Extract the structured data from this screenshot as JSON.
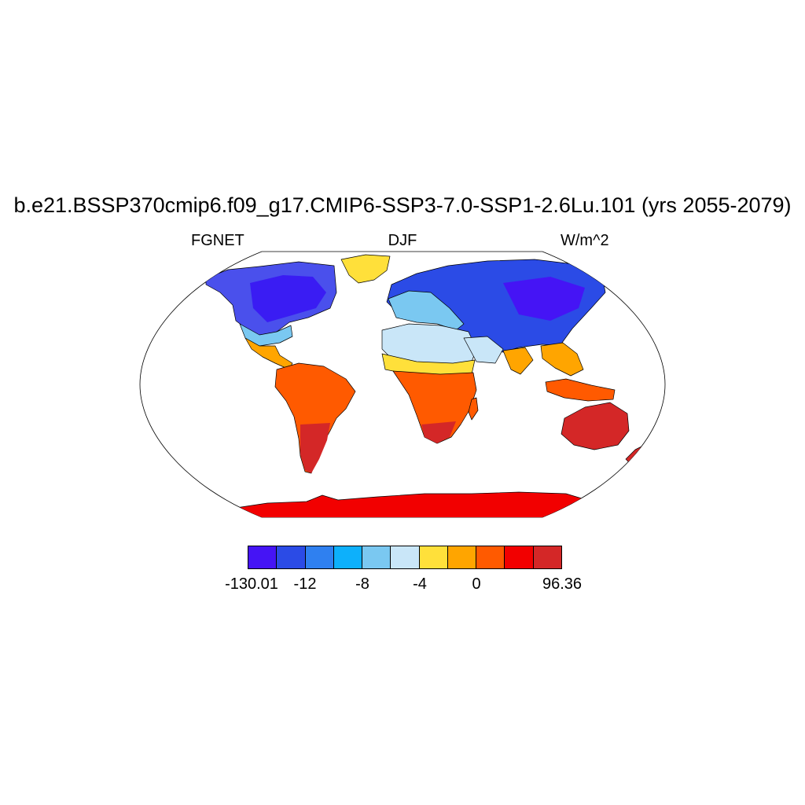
{
  "title": "b.e21.BSSP370cmip6.f09_g17.CMIP6-SSP3-7.0-SSP1-2.6Lu.101 (yrs 2055-2079)",
  "left_label": "FGNET",
  "center_label": "DJF",
  "right_label": "W/m^2",
  "colorbar": {
    "colors": [
      "#4514f5",
      "#2b4be6",
      "#2f80f0",
      "#0db0fb",
      "#7ac8f1",
      "#c9e6f8",
      "#ffe03a",
      "#ffa500",
      "#ff5a00",
      "#f20000",
      "#d42727"
    ],
    "tick_labels": [
      "-130.01",
      "-12",
      "-8",
      "-4",
      "0",
      "96.36"
    ]
  },
  "map": {
    "projection": "robinson",
    "ocean_color": "#ffffff",
    "region_values": {
      "canada_arctic": "-130.01 to -12",
      "siberia": "-130.01 to -12",
      "greenland": "-4 to 0",
      "north_africa": "-8 to -4",
      "south_america": "0 to 96.36",
      "southern_africa": "0 to 96.36",
      "australia": "96.36",
      "antarctica": "0 to 96.36"
    }
  }
}
